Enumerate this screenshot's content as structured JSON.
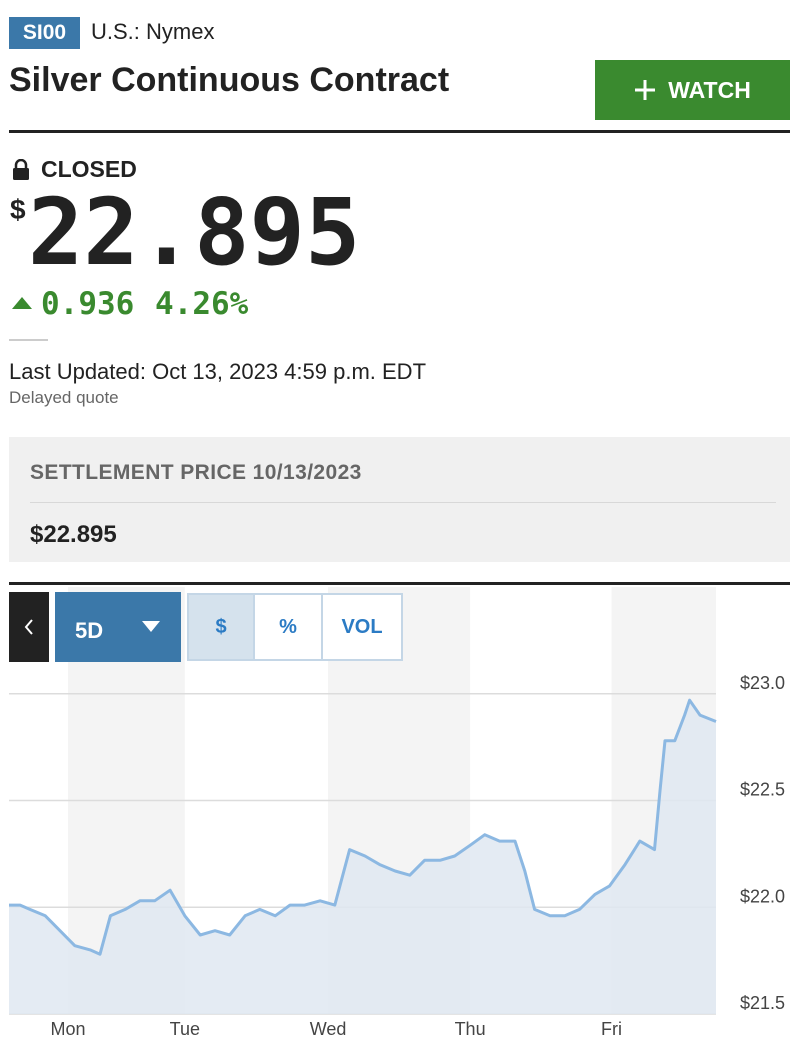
{
  "header": {
    "ticker": "SI00",
    "exchange": "U.S.: Nymex",
    "title": "Silver Continuous Contract",
    "watch_button": "WATCH"
  },
  "quote": {
    "status": "CLOSED",
    "currency": "$",
    "price": "22.895",
    "change": "0.936",
    "change_percent": "4.26%",
    "last_updated": "Last Updated: Oct 13, 2023 4:59 p.m. EDT",
    "delay_note": "Delayed quote"
  },
  "settlement": {
    "label": "SETTLEMENT PRICE 10/13/2023",
    "value": "$22.895"
  },
  "controls": {
    "range": "5D",
    "modes": [
      "$",
      "%",
      "VOL"
    ],
    "selected_mode": "$"
  },
  "chart_data": {
    "type": "area",
    "x": [
      0,
      1.8,
      3.4,
      5.9,
      8.3,
      10.7,
      13.2,
      14.8,
      16.5,
      18.9,
      21.3,
      23.7,
      26.2,
      28.6,
      31.1,
      33.5,
      35.9,
      38.4,
      40.8,
      43.3,
      45.7,
      48.1,
      50.6,
      53.0,
      55.4,
      57.9,
      60.3,
      62.8,
      65.2,
      67.6,
      70.1,
      72.5,
      75.0,
      77.4,
      79.8,
      82.3,
      83.9,
      85.5,
      88.0,
      90.4,
      92.8,
      95.3,
      97.7,
      100.2,
      102.6,
      105.0,
      105.9,
      106.7,
      108.3,
      109.9,
      110.7,
      112.4,
      115.0
    ],
    "values": [
      22.01,
      22.01,
      21.99,
      21.96,
      21.89,
      21.82,
      21.8,
      21.78,
      21.96,
      21.99,
      22.03,
      22.03,
      22.08,
      21.96,
      21.87,
      21.89,
      21.87,
      21.96,
      21.99,
      21.96,
      22.01,
      22.01,
      22.03,
      22.01,
      22.27,
      22.24,
      22.2,
      22.17,
      22.15,
      22.22,
      22.22,
      22.24,
      22.29,
      22.34,
      22.31,
      22.31,
      22.17,
      21.99,
      21.96,
      21.96,
      21.99,
      22.06,
      22.1,
      22.2,
      22.31,
      22.27,
      22.55,
      22.78,
      22.78,
      22.9,
      22.97,
      22.9,
      22.87
    ],
    "xlim": [
      0,
      115
    ],
    "xticks": [
      {
        "value": 9.6,
        "label": "Mon"
      },
      {
        "value": 28.6,
        "label": "Tue"
      },
      {
        "value": 51.9,
        "label": "Wed"
      },
      {
        "value": 75.0,
        "label": "Thu"
      },
      {
        "value": 98.0,
        "label": "Fri"
      }
    ],
    "ylim": [
      21.5,
      23.5
    ],
    "yticks": [
      {
        "value": 23,
        "label": "$23.0"
      },
      {
        "value": 22.5,
        "label": "$22.5"
      },
      {
        "value": 22,
        "label": "$22.0"
      },
      {
        "value": 21.5,
        "label": "$21.5"
      }
    ],
    "y_axis_position": "right",
    "grid": true,
    "color": "#8cb8e2",
    "fill_color": "#dfe8f1"
  }
}
